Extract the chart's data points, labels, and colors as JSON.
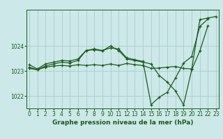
{
  "xlabel": "Graphe pression niveau de la mer (hPa)",
  "background_color": "#cce8e8",
  "grid_color": "#aacccc",
  "line_color": "#1a5c1a",
  "s1_x": [
    0,
    1,
    2,
    3,
    4,
    5,
    6,
    7,
    8,
    9,
    10,
    11,
    12,
    13,
    14,
    15,
    16,
    17,
    18,
    19,
    20,
    21,
    22,
    23
  ],
  "s1_y": [
    1023.1,
    1023.05,
    1023.15,
    1023.2,
    1023.22,
    1023.2,
    1023.25,
    1023.22,
    1023.25,
    1023.22,
    1023.28,
    1023.22,
    1023.3,
    1023.25,
    1023.22,
    1023.1,
    1023.12,
    1023.15,
    1023.18,
    1023.1,
    1023.08,
    1025.05,
    1025.12,
    1025.18
  ],
  "s2_x": [
    0,
    1,
    2,
    3,
    4,
    5,
    6,
    7,
    8,
    9,
    10,
    11,
    12,
    13,
    14,
    15,
    16,
    17,
    18,
    19,
    20,
    21,
    22
  ],
  "s2_y": [
    1023.15,
    1023.05,
    1023.2,
    1023.28,
    1023.35,
    1023.32,
    1023.42,
    1023.82,
    1023.85,
    1023.8,
    1024.0,
    1023.82,
    1023.48,
    1023.42,
    1023.35,
    1023.28,
    1022.82,
    1022.55,
    1022.2,
    1021.65,
    1023.05,
    1023.8,
    1024.82
  ],
  "s3_x": [
    0,
    1,
    2,
    3,
    4,
    5,
    6,
    7,
    8,
    9,
    10,
    11,
    12,
    13,
    14,
    15,
    16,
    17,
    18,
    19,
    20,
    21,
    22
  ],
  "s3_y": [
    1023.25,
    1023.08,
    1023.28,
    1023.35,
    1023.42,
    1023.4,
    1023.48,
    1023.82,
    1023.88,
    1023.82,
    1023.92,
    1023.88,
    1023.52,
    1023.45,
    1023.38,
    1021.65,
    1021.95,
    1022.15,
    1022.72,
    1023.32,
    1023.58,
    1024.78,
    1025.08
  ],
  "ylim": [
    1021.5,
    1025.45
  ],
  "xlim": [
    -0.3,
    23.3
  ],
  "yticks": [
    1022,
    1023,
    1024
  ],
  "ytick_labels": [
    "1022",
    "1023",
    "1024"
  ],
  "xticks": [
    0,
    1,
    2,
    3,
    4,
    5,
    6,
    7,
    8,
    9,
    10,
    11,
    12,
    13,
    14,
    15,
    16,
    17,
    18,
    19,
    20,
    21,
    22,
    23
  ],
  "tick_fontsize": 5.5,
  "xlabel_fontsize": 6.5
}
